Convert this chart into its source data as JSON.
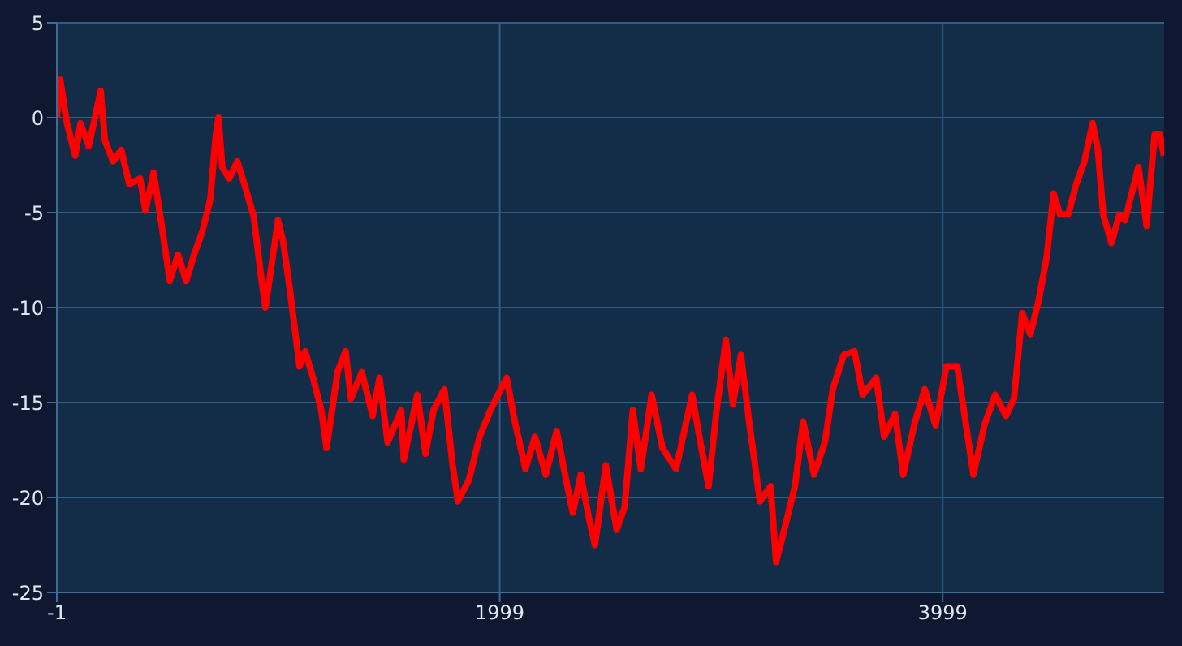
{
  "chart_data": {
    "type": "line",
    "xlim": [
      -1,
      4999
    ],
    "xticks": [
      -1,
      1999,
      3999
    ],
    "ylim": [
      -25,
      5
    ],
    "yticks": [
      -25,
      -20,
      -15,
      -10,
      -5,
      0,
      5
    ],
    "grid": true,
    "marker": "none",
    "line_style": "solid",
    "series": [
      {
        "color": "#ff0000",
        "x": [
          -1,
          14,
          45,
          82,
          106,
          143,
          175,
          197,
          216,
          253,
          290,
          326,
          375,
          399,
          436,
          473,
          509,
          546,
          583,
          619,
          656,
          692,
          717,
          729,
          746,
          778,
          814,
          851,
          888,
          924,
          941,
          973,
          998,
          1022,
          1046,
          1071,
          1095,
          1120,
          1156,
          1193,
          1217,
          1242,
          1266,
          1303,
          1327,
          1376,
          1425,
          1456,
          1493,
          1554,
          1566,
          1627,
          1664,
          1700,
          1749,
          1786,
          1810,
          1859,
          1908,
          1957,
          2030,
          2067,
          2115,
          2158,
          2207,
          2256,
          2304,
          2329,
          2365,
          2402,
          2429,
          2478,
          2527,
          2563,
          2600,
          2636,
          2685,
          2734,
          2795,
          2868,
          2905,
          2942,
          2978,
          3020,
          3052,
          3088,
          3125,
          3174,
          3222,
          3247,
          3284,
          3332,
          3369,
          3418,
          3467,
          3503,
          3552,
          3601,
          3638,
          3699,
          3735,
          3784,
          3821,
          3870,
          3918,
          3967,
          4016,
          4065,
          4102,
          4138,
          4187,
          4236,
          4285,
          4321,
          4358,
          4395,
          4431,
          4468,
          4500,
          4529,
          4566,
          4602,
          4639,
          4676,
          4700,
          4724,
          4761,
          4797,
          4822,
          4883,
          4920,
          4956,
          4980,
          4998
        ],
        "values": [
          0,
          2,
          -0.3,
          -2,
          -0.3,
          -1.5,
          0.2,
          1.4,
          -1.2,
          -2.3,
          -1.7,
          -3.5,
          -3.2,
          -4.9,
          -2.9,
          -5.7,
          -8.6,
          -7.2,
          -8.6,
          -7.2,
          -6,
          -4.3,
          -0.9,
          0,
          -2.6,
          -3.2,
          -2.3,
          -3.7,
          -5.2,
          -8.6,
          -10,
          -7.4,
          -5.4,
          -6.6,
          -8.6,
          -10.9,
          -13.1,
          -12.3,
          -13.7,
          -15.4,
          -17.4,
          -15.4,
          -13.4,
          -12.3,
          -14.8,
          -13.4,
          -15.7,
          -13.7,
          -17.1,
          -15.4,
          -18,
          -14.6,
          -17.7,
          -15.4,
          -14.3,
          -18.3,
          -20.2,
          -19.1,
          -16.8,
          -15.4,
          -13.7,
          -16,
          -18.5,
          -16.8,
          -18.8,
          -16.5,
          -19.4,
          -20.8,
          -18.8,
          -21.1,
          -22.5,
          -18.3,
          -21.7,
          -20.5,
          -15.4,
          -18.5,
          -14.6,
          -17.4,
          -18.5,
          -14.6,
          -17.1,
          -19.4,
          -15.4,
          -11.7,
          -15.1,
          -12.5,
          -16,
          -20.2,
          -19.4,
          -23.4,
          -21.7,
          -19.4,
          -16,
          -18.8,
          -17.1,
          -14.3,
          -12.5,
          -12.3,
          -14.6,
          -13.7,
          -16.8,
          -15.6,
          -18.8,
          -16.2,
          -14.3,
          -16.2,
          -13.1,
          -13.1,
          -16,
          -18.8,
          -16.2,
          -14.6,
          -15.7,
          -14.8,
          -10.3,
          -11.4,
          -9.7,
          -7.4,
          -4,
          -5.1,
          -5.1,
          -3.5,
          -2.3,
          -0.3,
          -1.7,
          -5.1,
          -6.6,
          -5.1,
          -5.4,
          -2.6,
          -5.7,
          -0.9,
          -0.9,
          -2
        ]
      }
    ]
  }
}
